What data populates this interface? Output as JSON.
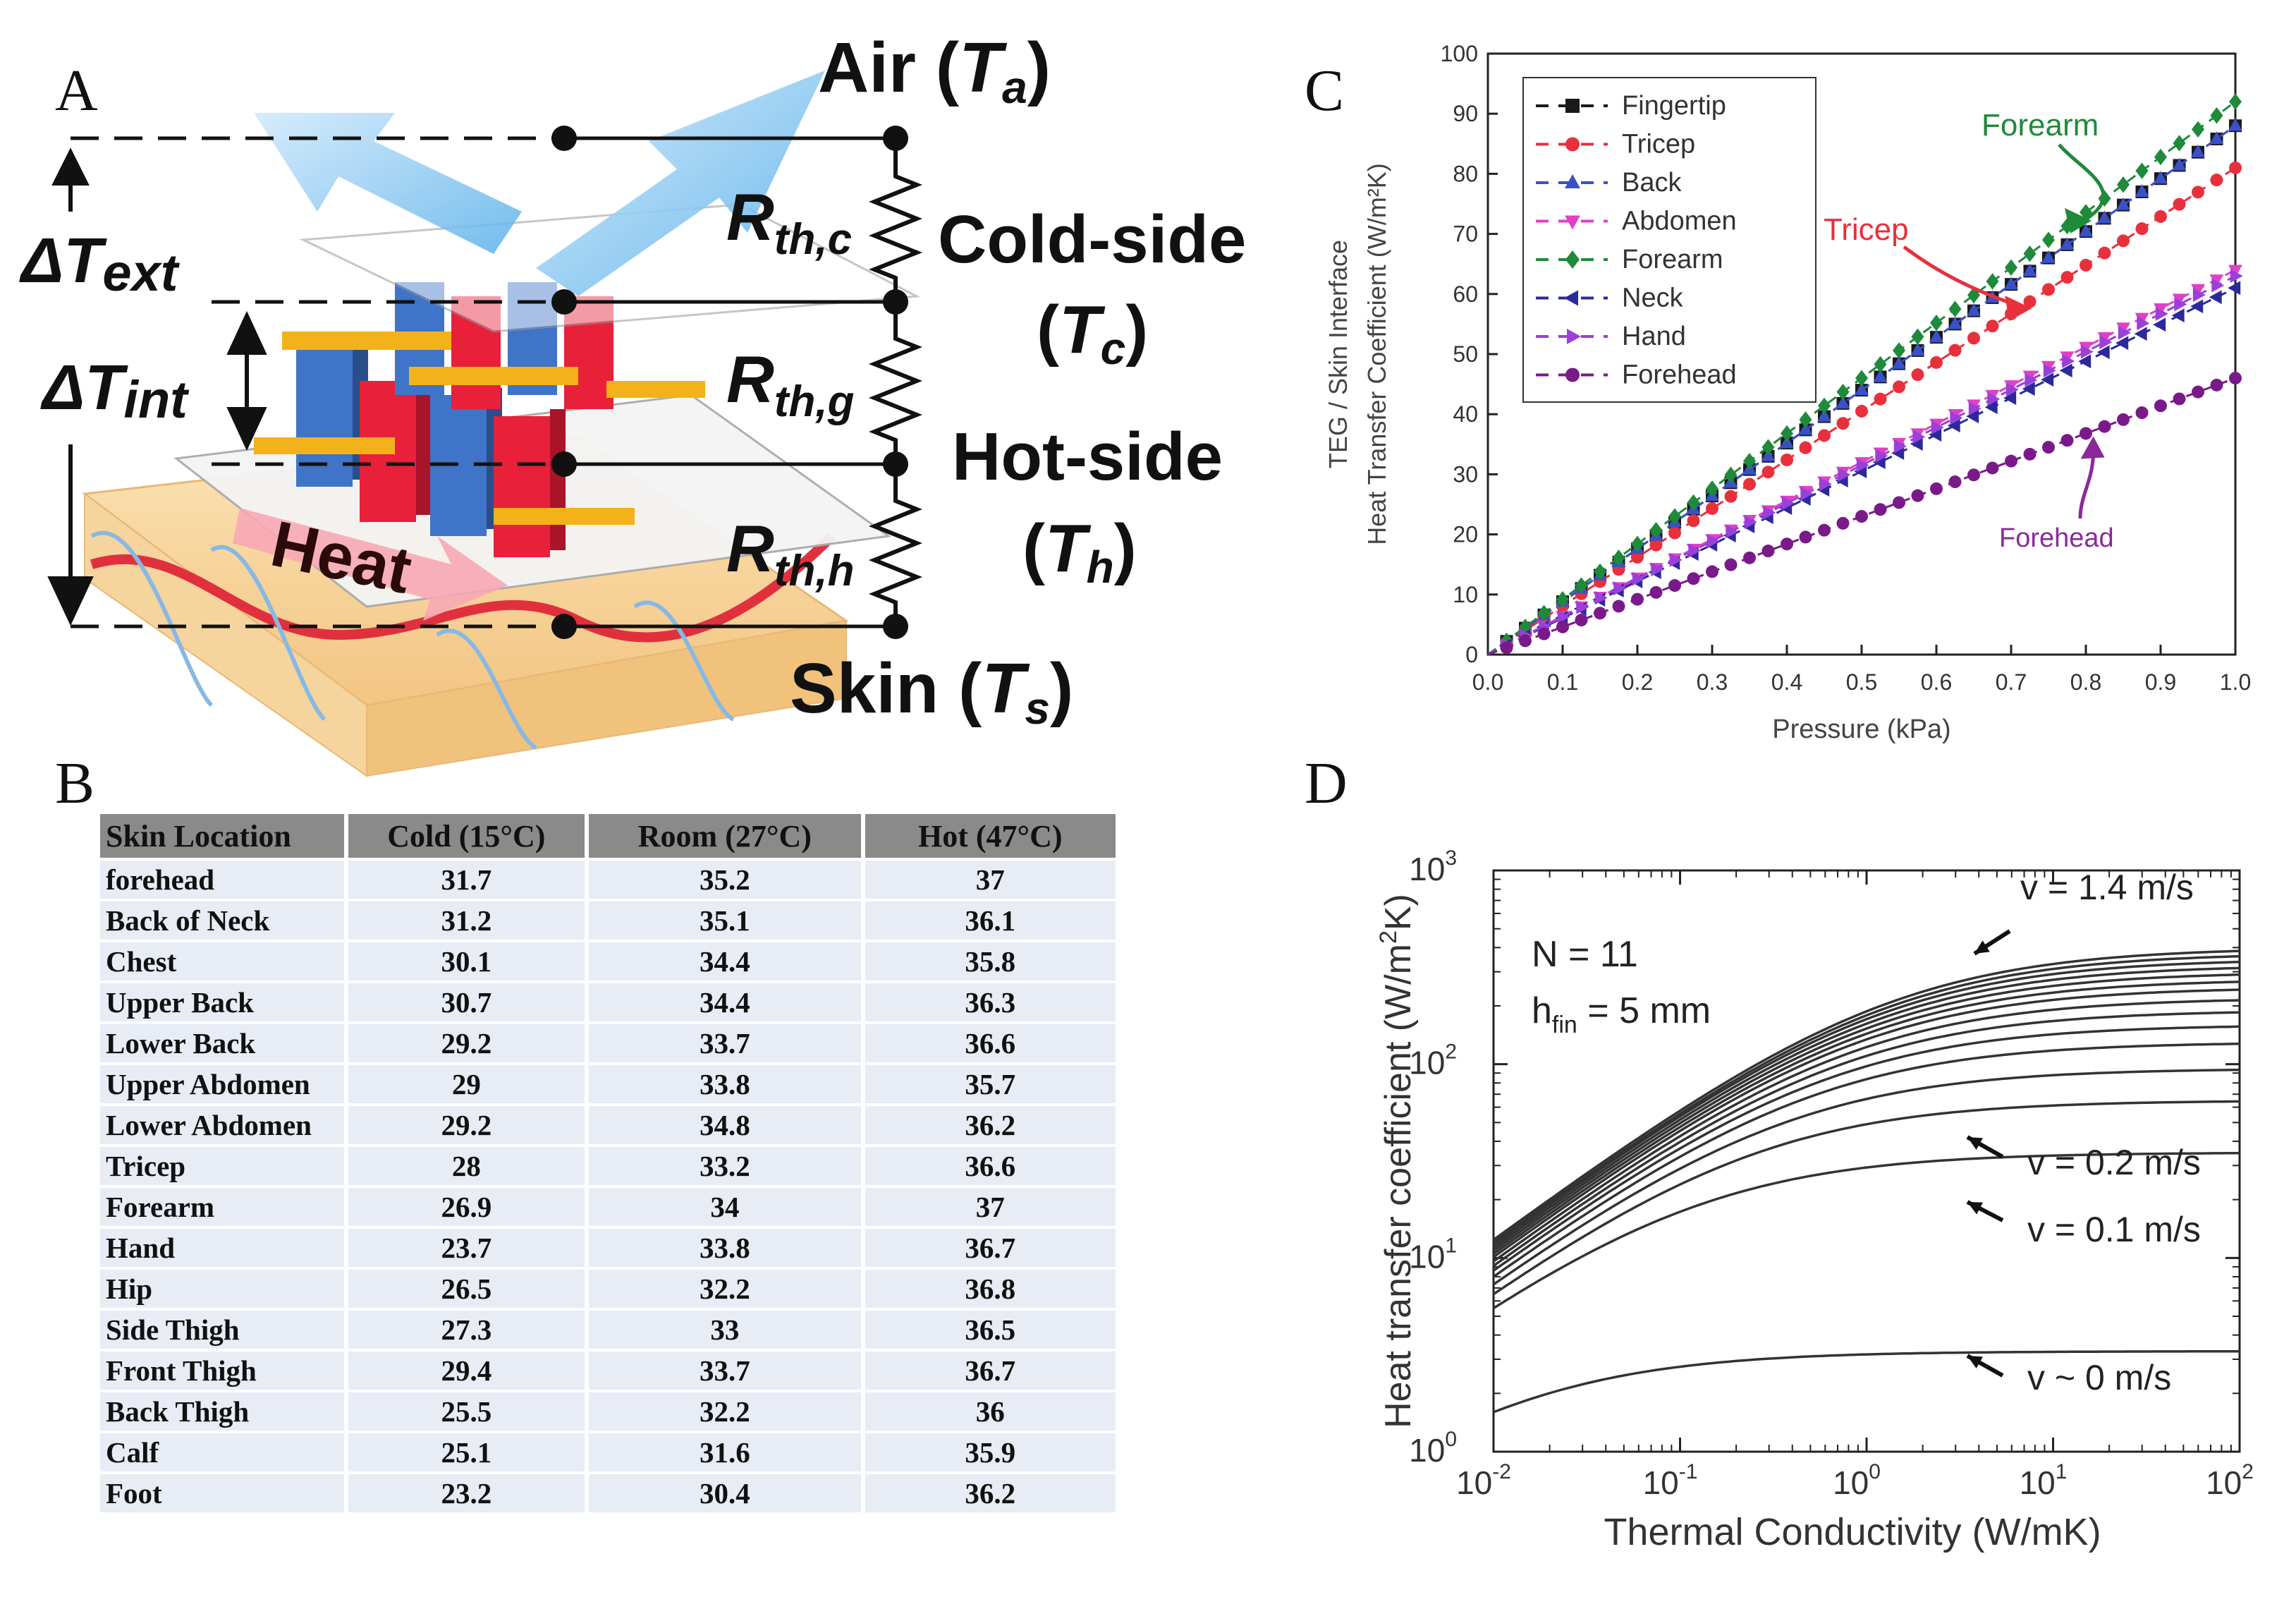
{
  "panels": {
    "a": "A",
    "b": "B",
    "c": "C",
    "d": "D"
  },
  "diagram": {
    "air": "Air (",
    "air_sym": "T",
    "air_sub": "a",
    "delta_ext": "ΔT",
    "delta_ext_sub": "ext",
    "delta_int": "ΔT",
    "delta_int_sub": "int",
    "r_c": "R",
    "r_c_sub": "th,c",
    "r_g": "R",
    "r_g_sub": "th,g",
    "r_h": "R",
    "r_h_sub": "th,h",
    "cold_side": "Cold-side",
    "cold_sym": "T",
    "cold_sub": "c",
    "hot_side": "Hot-side",
    "hot_sym": "T",
    "hot_sub": "h",
    "skin": "Skin (",
    "skin_sym": "T",
    "skin_sub": "s",
    "heat": "Heat"
  },
  "table": {
    "headers": [
      "Skin Location",
      "Cold (15°C)",
      "Room (27°C)",
      "Hot (47°C)"
    ],
    "rows": [
      [
        "forehead",
        "31.7",
        "35.2",
        "37"
      ],
      [
        "Back of Neck",
        "31.2",
        "35.1",
        "36.1"
      ],
      [
        "Chest",
        "30.1",
        "34.4",
        "35.8"
      ],
      [
        "Upper Back",
        "30.7",
        "34.4",
        "36.3"
      ],
      [
        "Lower Back",
        "29.2",
        "33.7",
        "36.6"
      ],
      [
        "Upper Abdomen",
        "29",
        "33.8",
        "35.7"
      ],
      [
        "Lower Abdomen",
        "29.2",
        "34.8",
        "36.2"
      ],
      [
        "Tricep",
        "28",
        "33.2",
        "36.6"
      ],
      [
        "Forearm",
        "26.9",
        "34",
        "37"
      ],
      [
        "Hand",
        "23.7",
        "33.8",
        "36.7"
      ],
      [
        "Hip",
        "26.5",
        "32.2",
        "36.8"
      ],
      [
        "Side Thigh",
        "27.3",
        "33",
        "36.5"
      ],
      [
        "Front Thigh",
        "29.4",
        "33.7",
        "36.7"
      ],
      [
        "Back Thigh",
        "25.5",
        "32.2",
        "36"
      ],
      [
        "Calf",
        "25.1",
        "31.6",
        "35.9"
      ],
      [
        "Foot",
        "23.2",
        "30.4",
        "36.2"
      ]
    ]
  },
  "chart_data": [
    {
      "type": "line",
      "panel": "C",
      "ylabel_line1": "TEG / Skin Interface",
      "ylabel_line2": "Heat Transfer Coefficient (W/m²K)",
      "xlabel": "Pressure (kPa)",
      "xlim": [
        0,
        1.0
      ],
      "ylim": [
        0,
        100
      ],
      "xticks": [
        "0.0",
        "0.1",
        "0.2",
        "0.3",
        "0.4",
        "0.5",
        "0.6",
        "0.7",
        "0.8",
        "0.9",
        "1.0"
      ],
      "yticks": [
        "0",
        "10",
        "20",
        "30",
        "40",
        "50",
        "60",
        "70",
        "80",
        "90",
        "100"
      ],
      "legend_position": "top-left",
      "series": [
        {
          "name": "Fingertip",
          "color": "#1a1a1a",
          "marker": "square",
          "slope": 88
        },
        {
          "name": "Tricep",
          "color": "#e8303c",
          "marker": "circle",
          "slope": 81
        },
        {
          "name": "Back",
          "color": "#3a50c8",
          "marker": "triangle-up",
          "slope": 88
        },
        {
          "name": "Abdomen",
          "color": "#e040c8",
          "marker": "triangle-down",
          "slope": 64
        },
        {
          "name": "Forearm",
          "color": "#1e8a3a",
          "marker": "diamond",
          "slope": 92
        },
        {
          "name": "Neck",
          "color": "#2a2a9a",
          "marker": "triangle-left",
          "slope": 61
        },
        {
          "name": "Hand",
          "color": "#9a40d8",
          "marker": "triangle-right",
          "slope": 63
        },
        {
          "name": "Forehead",
          "color": "#7a1a8a",
          "marker": "circle",
          "slope": 46
        }
      ],
      "annotations": [
        {
          "text": "Forearm",
          "color": "#1e8a3a"
        },
        {
          "text": "Tricep",
          "color": "#e8303c"
        },
        {
          "text": "Forehead",
          "color": "#8a2a9a"
        }
      ]
    },
    {
      "type": "line",
      "panel": "D",
      "xscale": "log",
      "yscale": "log",
      "xlabel": "Thermal Conductivity (W/mK)",
      "ylabel": "Heat transfer coefficient (W/m",
      "ylabel_sup": "2",
      "ylabel_end": "K)",
      "xlim": [
        0.01,
        100
      ],
      "ylim": [
        1,
        1000
      ],
      "xtick_base": "10",
      "xtick_exps": [
        "-2",
        "-1",
        "0",
        "1",
        "2"
      ],
      "ytick_base": "10",
      "ytick_exps": [
        "0",
        "1",
        "2",
        "3"
      ],
      "params_line1": "N = 11",
      "params_line2_a": "h",
      "params_line2_sub": "fin",
      "params_line2_b": " = 5 mm",
      "velocities": [
        0,
        0.1,
        0.2,
        0.3,
        0.4,
        0.5,
        0.6,
        0.7,
        0.8,
        0.9,
        1.0,
        1.1,
        1.2,
        1.3,
        1.4
      ],
      "plateau_values": [
        3.3,
        35,
        65,
        95,
        130,
        160,
        190,
        220,
        250,
        275,
        300,
        325,
        350,
        375,
        400
      ],
      "low_k_values": [
        1.6,
        5.5,
        6.5,
        7.3,
        8.0,
        8.6,
        9.1,
        9.6,
        10.1,
        10.5,
        10.9,
        11.3,
        11.7,
        12.0,
        12.4
      ],
      "labels": [
        {
          "text": "v = 1.4 m/s"
        },
        {
          "text": "v = 0.2 m/s"
        },
        {
          "text": "v = 0.1 m/s"
        },
        {
          "text": "v ~ 0 m/s"
        }
      ],
      "color": "#333333"
    }
  ]
}
